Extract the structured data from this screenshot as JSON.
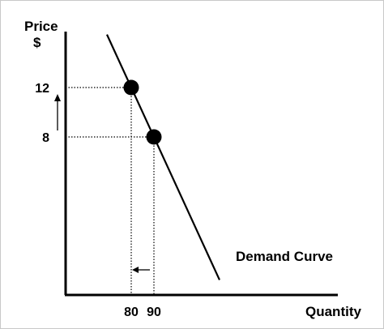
{
  "chart_data": {
    "type": "line",
    "ylabel": "Price",
    "ylabel_unit": "$",
    "xlabel": "Quantity",
    "y_ticks": [
      12,
      8
    ],
    "x_ticks": [
      80,
      90
    ],
    "series": [
      {
        "name": "Demand Curve",
        "points": [
          {
            "x": 80,
            "y": 12
          },
          {
            "x": 90,
            "y": 8
          }
        ]
      }
    ],
    "annotations": {
      "price_arrow": "up",
      "quantity_arrow": "left"
    },
    "grid": false,
    "colors": {
      "axis": "#000000",
      "curve": "#000000",
      "dot": "#000000",
      "guide": "#000000"
    }
  }
}
